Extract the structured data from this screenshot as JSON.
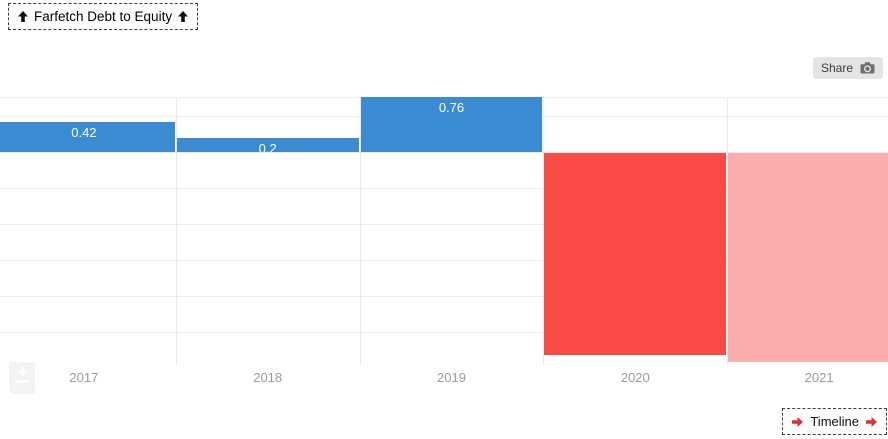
{
  "header": {
    "title": "Farfetch Debt to Equity",
    "title_left_icon": "up-arrow",
    "title_right_icon": "up-arrow"
  },
  "toolbar": {
    "share_label": "Share",
    "share_icon": "camera-icon",
    "download_icon": "download-arrow-icon"
  },
  "footer": {
    "timeline_label": "Timeline",
    "timeline_left_icon": "right-arrow",
    "timeline_right_icon": "right-arrow"
  },
  "colors": {
    "positive_bar": "#3b8bd3",
    "negative_bar": "#fb4b47",
    "negative_bar_light": "#fcaeae",
    "bar_label_text": "#ffffff",
    "axis_label": "#9a9a9a",
    "gridline": "#ededed",
    "vgridline": "#e9e9e9",
    "arrow_red": "#e03131",
    "arrow_black": "#111111"
  },
  "chart_data": {
    "type": "bar",
    "title": "Farfetch Debt to Equity",
    "categories": [
      "2017",
      "2018",
      "2019",
      "2020",
      "2021"
    ],
    "bars": [
      {
        "year": "2017",
        "value": 0.42,
        "label": "0.42",
        "color_role": "positive"
      },
      {
        "year": "2018",
        "value": 0.2,
        "label": "0.2",
        "color_role": "positive"
      },
      {
        "year": "2019",
        "value": 0.76,
        "label": "0.76",
        "color_role": "positive"
      },
      {
        "year": "2020",
        "value": -2.8,
        "label": "",
        "color_role": "negative"
      },
      {
        "year": "2021",
        "value": -2.9,
        "label": "",
        "color_role": "negative_light"
      }
    ],
    "xlabel": "",
    "ylabel": "",
    "ylim": [
      -2.95,
      0.78
    ],
    "yticks": [
      0.5,
      0,
      -0.5,
      -1,
      -1.5,
      -2,
      -2.5
    ],
    "grid": true,
    "legend": false
  }
}
